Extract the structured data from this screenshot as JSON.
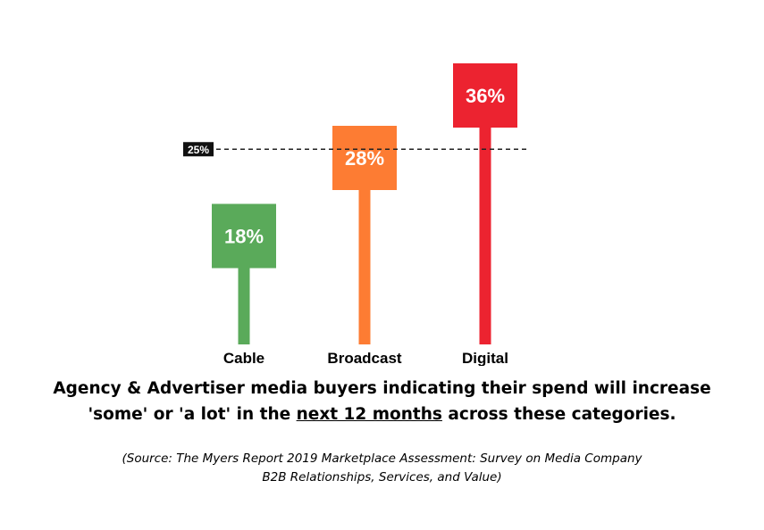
{
  "chart_data": {
    "type": "bar",
    "style": "lollipop-square",
    "categories": [
      "Cable",
      "Broadcast",
      "Digital"
    ],
    "values": [
      18,
      28,
      36
    ],
    "value_labels": [
      "18%",
      "28%",
      "36%"
    ],
    "colors": [
      "#5aaa5a",
      "#fd7c33",
      "#ec2330"
    ],
    "reference_line": {
      "value": 25,
      "label": "25%"
    },
    "title": "",
    "xlabel": "",
    "ylabel": "",
    "ylim": [
      0,
      40
    ],
    "grid": false,
    "legend": "none"
  },
  "caption": {
    "line1": "Agency & Advertiser media buyers indicating their spend will increase",
    "line2_pre": "'some' or 'a lot' in the ",
    "line2_underlined": "next 12 months",
    "line2_post": " across these categories."
  },
  "source": {
    "line1": "(Source: The Myers Report 2019 Marketplace Assessment: Survey on Media Company",
    "line2": "B2B Relationships, Services, and Value)"
  }
}
